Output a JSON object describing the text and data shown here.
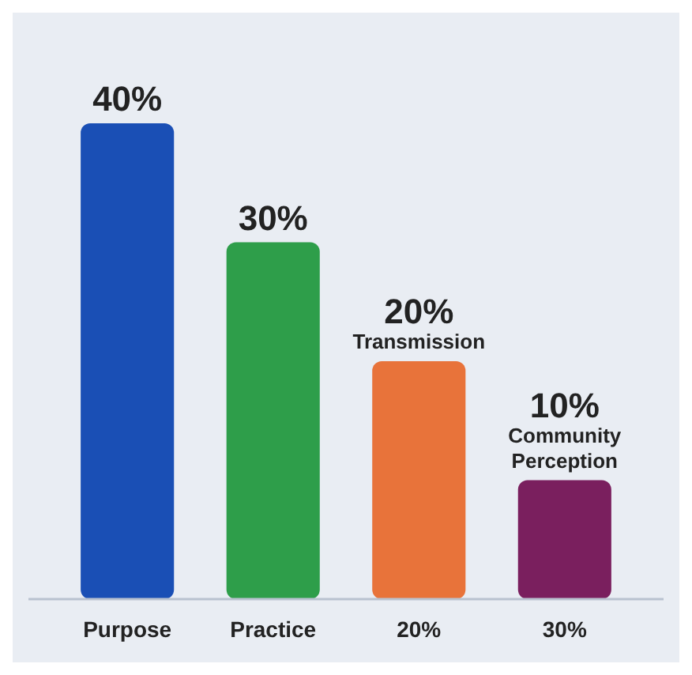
{
  "chart_data": {
    "type": "bar",
    "categories": [
      "Purpose",
      "Practice",
      "20%",
      "30%"
    ],
    "values": [
      40,
      30,
      20,
      10
    ],
    "value_labels": [
      "40%",
      "30%",
      "20%",
      "10%"
    ],
    "colors": [
      "#1a4fb5",
      "#2e9e4a",
      "#e8733a",
      "#7a1f5e"
    ],
    "annotations": [
      {
        "text": "Transmission",
        "x": "20%",
        "y": 20
      },
      {
        "text": "Community Perception",
        "x": "30%",
        "y": 10
      }
    ]
  }
}
